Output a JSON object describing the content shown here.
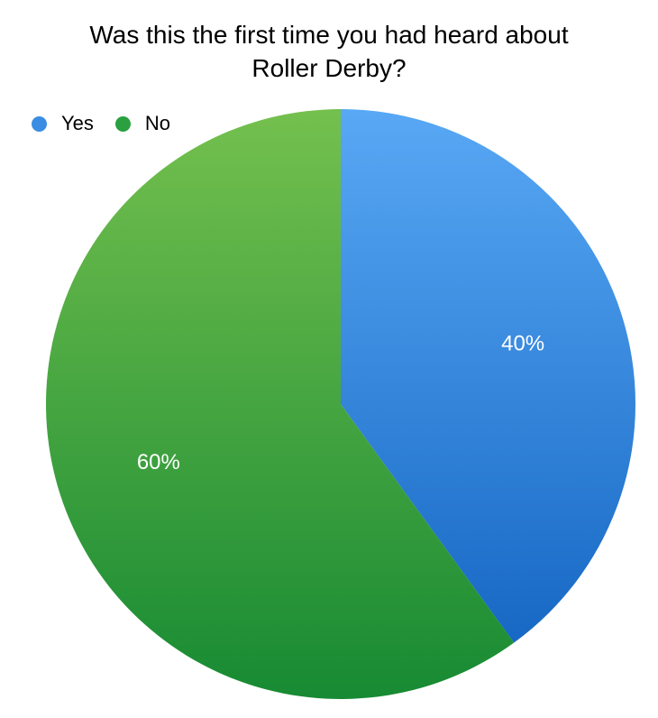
{
  "chart_data": {
    "type": "pie",
    "title_lines": [
      "Was this the first time you had heard about",
      "Roller Derby?"
    ],
    "categories": [
      "Yes",
      "No"
    ],
    "values": [
      40,
      60
    ],
    "data_labels": [
      "40%",
      "60%"
    ],
    "colors": {
      "Yes": {
        "light": "#58a8f5",
        "dark": "#1768c4",
        "legend": "#3a8de3"
      },
      "No": {
        "light": "#74c04e",
        "dark": "#178a33",
        "legend": "#2aa040"
      }
    },
    "legend": {
      "placement": "top-left",
      "items": [
        "Yes",
        "No"
      ]
    },
    "start_angle_deg": 0,
    "direction": "clockwise"
  }
}
